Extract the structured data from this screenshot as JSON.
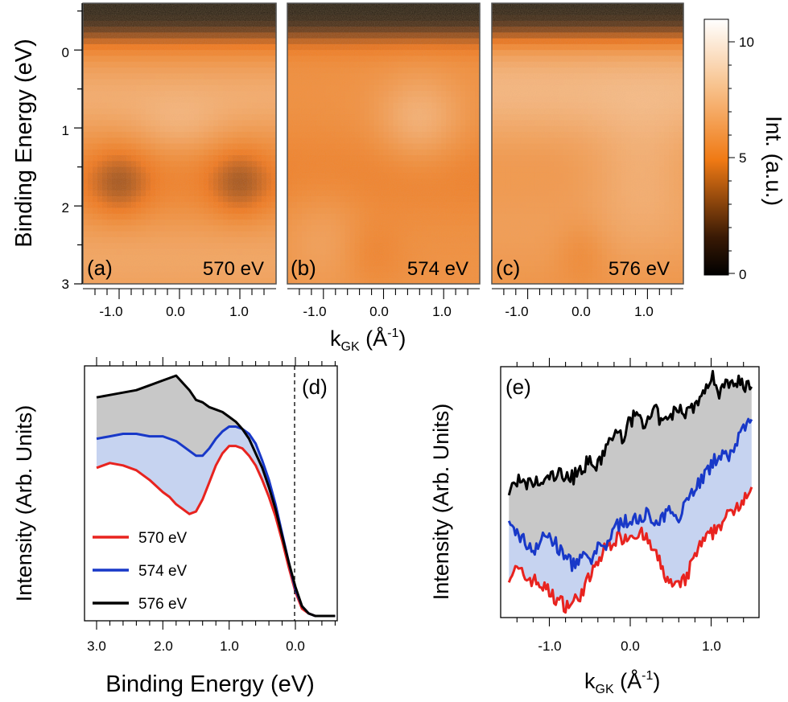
{
  "figure": {
    "top": {
      "ylabel": "Binding Energy (eV)",
      "xlabel_main": "k",
      "xlabel_sub": "GK",
      "xlabel_unit": " (Å",
      "xlabel_exp": "-1",
      "xlabel_close": ")",
      "yticks": [
        "0",
        "1",
        "2",
        "3"
      ],
      "xticks": [
        "-1.0",
        "0.0",
        "1.0"
      ],
      "panels": [
        {
          "tag": "(a)",
          "energy": "570 eV"
        },
        {
          "tag": "(b)",
          "energy": "574 eV"
        },
        {
          "tag": "(c)",
          "energy": "576 eV"
        }
      ],
      "colorbar": {
        "label": "Int. (a.u.)",
        "ticks": [
          "10",
          "5",
          "0"
        ]
      }
    },
    "panel_d": {
      "tag": "(d)",
      "ylabel": "Intensity (Arb. Units)",
      "xlabel": "Binding Energy (eV)",
      "xticks": [
        "3.0",
        "2.0",
        "1.0",
        "0.0"
      ]
    },
    "panel_e": {
      "tag": "(e)",
      "ylabel": "Intensity (Arb. Units)",
      "xlabel_main": "k",
      "xlabel_sub": "GK",
      "xlabel_unit": " (Å",
      "xlabel_exp": "-1",
      "xlabel_close": ")",
      "xticks": [
        "-1.0",
        "0.0",
        "1.0"
      ]
    }
  },
  "chart_data": [
    {
      "type": "heatmap",
      "panel": "(a)",
      "photon_energy": "570 eV",
      "x_range": [
        -1.6,
        1.6
      ],
      "y_range": [
        -0.6,
        3.0
      ],
      "y_reversed": true,
      "color_range": [
        0,
        11
      ],
      "colormap": [
        "#000000",
        "#f07a14",
        "#ffffff"
      ],
      "features": "dark band near EF above 0 eV; bright band 0.2-1.2 eV; dark pockets at k=-1.0 and k=1.0 around 1.7 eV"
    },
    {
      "type": "heatmap",
      "panel": "(b)",
      "photon_energy": "574 eV",
      "x_range": [
        -1.6,
        1.6
      ],
      "y_range": [
        -0.6,
        3.0
      ],
      "y_reversed": true,
      "color_range": [
        0,
        11
      ]
    },
    {
      "type": "heatmap",
      "panel": "(c)",
      "photon_energy": "576 eV",
      "x_range": [
        -1.6,
        1.6
      ],
      "y_range": [
        -0.6,
        3.0
      ],
      "y_reversed": true,
      "color_range": [
        0,
        11
      ]
    },
    {
      "type": "area",
      "panel": "(d)",
      "x_reversed": true,
      "xlim": [
        3.0,
        -0.6
      ],
      "x": [
        3.0,
        2.8,
        2.6,
        2.4,
        2.2,
        2.0,
        1.9,
        1.8,
        1.7,
        1.6,
        1.5,
        1.4,
        1.3,
        1.2,
        1.1,
        1.0,
        0.9,
        0.8,
        0.7,
        0.6,
        0.5,
        0.4,
        0.3,
        0.2,
        0.1,
        0.0,
        -0.1,
        -0.2,
        -0.3,
        -0.4,
        -0.6
      ],
      "series": [
        {
          "name": "570 eV",
          "color": "#e8231f",
          "fill": "#c6d3f0",
          "values": [
            0.61,
            0.63,
            0.62,
            0.6,
            0.56,
            0.51,
            0.49,
            0.46,
            0.44,
            0.42,
            0.43,
            0.48,
            0.55,
            0.62,
            0.67,
            0.7,
            0.7,
            0.69,
            0.66,
            0.62,
            0.56,
            0.49,
            0.41,
            0.31,
            0.2,
            0.1,
            0.03,
            0.01,
            0.0,
            0.0,
            0.0
          ]
        },
        {
          "name": "574 eV",
          "color": "#1838c8",
          "fill": "#c8c8c8",
          "values": [
            0.73,
            0.74,
            0.75,
            0.75,
            0.74,
            0.74,
            0.73,
            0.72,
            0.7,
            0.68,
            0.66,
            0.66,
            0.69,
            0.73,
            0.76,
            0.78,
            0.78,
            0.77,
            0.75,
            0.71,
            0.64,
            0.56,
            0.46,
            0.34,
            0.22,
            0.11,
            0.04,
            0.01,
            0.0,
            0.0,
            0.0
          ]
        },
        {
          "name": "576 eV",
          "color": "#000000",
          "values": [
            0.9,
            0.91,
            0.92,
            0.93,
            0.95,
            0.97,
            0.98,
            0.99,
            0.96,
            0.93,
            0.89,
            0.88,
            0.86,
            0.85,
            0.84,
            0.82,
            0.8,
            0.77,
            0.73,
            0.67,
            0.61,
            0.53,
            0.44,
            0.33,
            0.22,
            0.12,
            0.04,
            0.01,
            0.0,
            0.0,
            0.0
          ]
        }
      ],
      "ylim": [
        -0.02,
        1.03
      ],
      "vline_x": 0.0
    },
    {
      "type": "area",
      "panel": "(e)",
      "xlim": [
        -1.6,
        1.6
      ],
      "x": [
        -1.5,
        -1.4,
        -1.3,
        -1.2,
        -1.1,
        -1.0,
        -0.9,
        -0.8,
        -0.7,
        -0.6,
        -0.5,
        -0.4,
        -0.3,
        -0.2,
        -0.1,
        0.0,
        0.1,
        0.2,
        0.3,
        0.4,
        0.5,
        0.6,
        0.7,
        0.8,
        0.9,
        1.0,
        1.1,
        1.2,
        1.3,
        1.4,
        1.5
      ],
      "series": [
        {
          "name": "570 eV",
          "color": "#e8231f",
          "fill": "#c6d3f0",
          "values": [
            0.17,
            0.19,
            0.16,
            0.15,
            0.13,
            0.1,
            0.07,
            0.05,
            0.06,
            0.1,
            0.16,
            0.22,
            0.28,
            0.31,
            0.32,
            0.33,
            0.34,
            0.31,
            0.26,
            0.19,
            0.13,
            0.12,
            0.16,
            0.25,
            0.3,
            0.33,
            0.37,
            0.4,
            0.44,
            0.48,
            0.52
          ]
        },
        {
          "name": "574 eV",
          "color": "#1838c8",
          "fill": "#c8c8c8",
          "values": [
            0.36,
            0.34,
            0.3,
            0.27,
            0.31,
            0.33,
            0.28,
            0.24,
            0.21,
            0.24,
            0.22,
            0.27,
            0.29,
            0.35,
            0.39,
            0.37,
            0.4,
            0.42,
            0.36,
            0.39,
            0.43,
            0.41,
            0.47,
            0.52,
            0.56,
            0.6,
            0.66,
            0.63,
            0.7,
            0.74,
            0.79
          ]
        },
        {
          "name": "576 eV",
          "color": "#000000",
          "values": [
            0.5,
            0.55,
            0.52,
            0.54,
            0.53,
            0.56,
            0.57,
            0.57,
            0.56,
            0.6,
            0.62,
            0.6,
            0.68,
            0.73,
            0.72,
            0.78,
            0.82,
            0.76,
            0.83,
            0.77,
            0.8,
            0.84,
            0.82,
            0.85,
            0.88,
            0.97,
            0.9,
            0.94,
            0.95,
            0.93,
            0.92
          ]
        }
      ],
      "ylim": [
        0.0,
        1.0
      ]
    }
  ]
}
